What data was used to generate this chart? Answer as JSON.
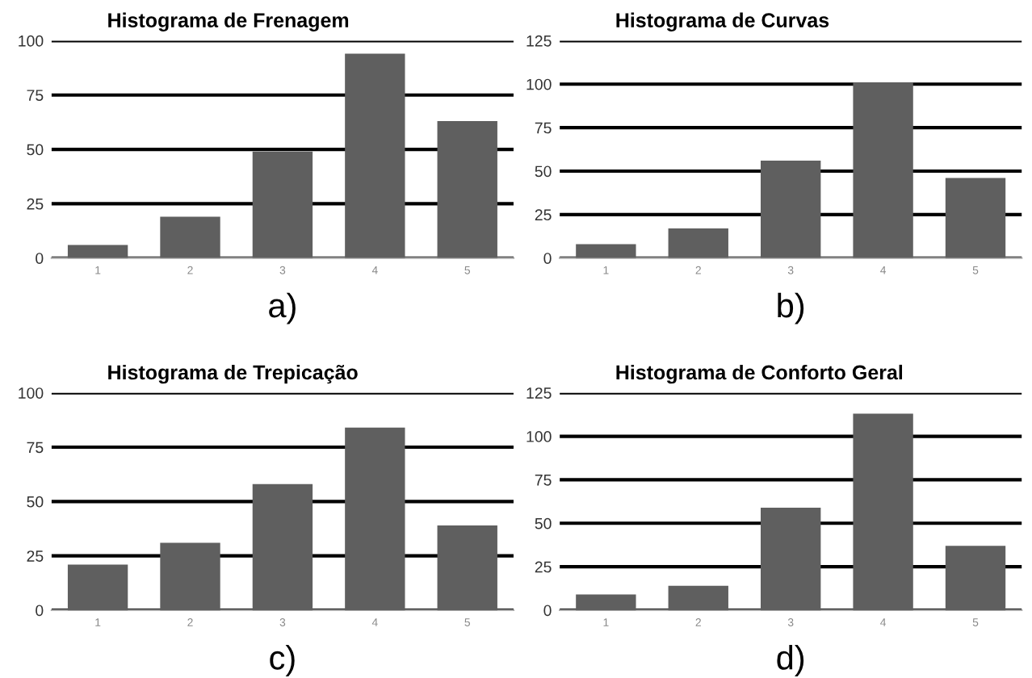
{
  "chart_data": [
    {
      "type": "bar",
      "title": "Histograma de Frenagem",
      "categories": [
        "1",
        "2",
        "3",
        "4",
        "5"
      ],
      "values": [
        6,
        19,
        49,
        94,
        63
      ],
      "color": "#5f5f5f",
      "ylim": [
        0,
        100
      ],
      "yticks": [
        0,
        25,
        50,
        75,
        100
      ],
      "grid": "y",
      "annotations": [
        "a)"
      ]
    },
    {
      "type": "bar",
      "title": "Histograma de Curvas",
      "categories": [
        "1",
        "2",
        "3",
        "4",
        "5"
      ],
      "values": [
        8,
        17,
        56,
        101,
        46
      ],
      "color": "#5f5f5f",
      "ylim": [
        0,
        125
      ],
      "yticks": [
        0,
        25,
        50,
        75,
        100,
        125
      ],
      "grid": "y",
      "annotations": [
        "b)"
      ]
    },
    {
      "type": "bar",
      "title": "Histograma de Trepicação",
      "categories": [
        "1",
        "2",
        "3",
        "4",
        "5"
      ],
      "values": [
        21,
        31,
        58,
        84,
        39
      ],
      "color": "#5f5f5f",
      "ylim": [
        0,
        100
      ],
      "yticks": [
        0,
        25,
        50,
        75,
        100
      ],
      "grid": "y",
      "annotations": [
        "c)"
      ]
    },
    {
      "type": "bar",
      "title": "Histograma de Conforto Geral",
      "categories": [
        "1",
        "2",
        "3",
        "4",
        "5"
      ],
      "values": [
        9,
        14,
        59,
        113,
        37
      ],
      "color": "#5f5f5f",
      "ylim": [
        0,
        125
      ],
      "yticks": [
        0,
        25,
        50,
        75,
        100,
        125
      ],
      "grid": "y",
      "annotations": [
        "d)"
      ]
    }
  ]
}
